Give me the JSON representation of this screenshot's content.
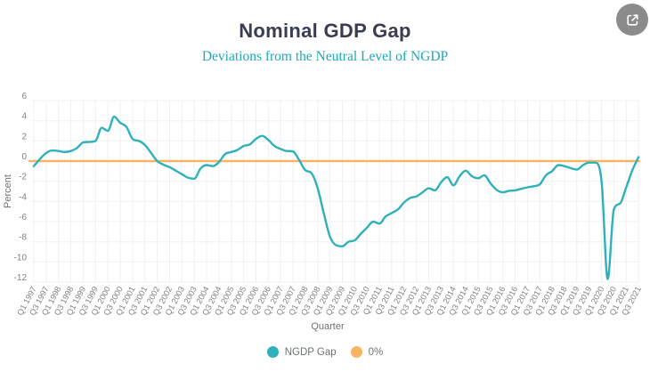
{
  "header": {
    "title": "Nominal GDP Gap",
    "subtitle": "Deviations from the Neutral Level of NGDP"
  },
  "toolbar": {
    "share_icon": "share-export-icon"
  },
  "legend": {
    "items": [
      {
        "label": "NGDP Gap",
        "color": "#2fb1bc"
      },
      {
        "label": "0%",
        "color": "#f8b464"
      }
    ]
  },
  "colors": {
    "title": "#383d52",
    "subtitle": "#1fa8b7",
    "ngdp_line": "#2fb1bc",
    "zero_line": "#f8b464",
    "axis_text": "#7e8184",
    "gridline": "#f0f0f4",
    "share_button": "#8b8b8b"
  },
  "chart_data": {
    "type": "line",
    "title": "Nominal GDP Gap",
    "subtitle": "Deviations from the Neutral Level of NGDP",
    "xlabel": "Quarter",
    "ylabel": "Percent",
    "ylim": [
      -12,
      6.4
    ],
    "yticks": [
      6,
      4,
      2,
      0,
      -2,
      -4,
      -6,
      -8,
      -10,
      -12
    ],
    "grid": true,
    "legend_position": "bottom",
    "x_tick_labels": [
      "Q1 1997",
      "Q3 1997",
      "Q1 1998",
      "Q3 1998",
      "Q1 1999",
      "Q3 1999",
      "Q1 2000",
      "Q3 2000",
      "Q1 2001",
      "Q3 2001",
      "Q1 2002",
      "Q3 2002",
      "Q1 2003",
      "Q3 2003",
      "Q1 2004",
      "Q3 2004",
      "Q1 2005",
      "Q3 2005",
      "Q1 2006",
      "Q3 2006",
      "Q1 2007",
      "Q3 2007",
      "Q1 2008",
      "Q3 2008",
      "Q1 2009",
      "Q3 2009",
      "Q1 2010",
      "Q3 2010",
      "Q1 2011",
      "Q3 2011",
      "Q1 2012",
      "Q3 2012",
      "Q1 2013",
      "Q3 2013",
      "Q1 2014",
      "Q3 2014",
      "Q1 2015",
      "Q3 2015",
      "Q1 2016",
      "Q3 2016",
      "Q1 2017",
      "Q3 2017",
      "Q1 2018",
      "Q3 2018",
      "Q1 2019",
      "Q3 2019",
      "Q1 2020",
      "Q3 2020",
      "Q1 2021",
      "Q3 2021"
    ],
    "x": [
      "Q1 1997",
      "Q2 1997",
      "Q3 1997",
      "Q4 1997",
      "Q1 1998",
      "Q2 1998",
      "Q3 1998",
      "Q4 1998",
      "Q1 1999",
      "Q2 1999",
      "Q3 1999",
      "Q4 1999",
      "Q1 2000",
      "Q2 2000",
      "Q3 2000",
      "Q4 2000",
      "Q1 2001",
      "Q2 2001",
      "Q3 2001",
      "Q4 2001",
      "Q1 2002",
      "Q2 2002",
      "Q3 2002",
      "Q4 2002",
      "Q1 2003",
      "Q2 2003",
      "Q3 2003",
      "Q4 2003",
      "Q1 2004",
      "Q2 2004",
      "Q3 2004",
      "Q4 2004",
      "Q1 2005",
      "Q2 2005",
      "Q3 2005",
      "Q4 2005",
      "Q1 2006",
      "Q2 2006",
      "Q3 2006",
      "Q4 2006",
      "Q1 2007",
      "Q2 2007",
      "Q3 2007",
      "Q4 2007",
      "Q1 2008",
      "Q2 2008",
      "Q3 2008",
      "Q4 2008",
      "Q1 2009",
      "Q2 2009",
      "Q3 2009",
      "Q4 2009",
      "Q1 2010",
      "Q2 2010",
      "Q3 2010",
      "Q4 2010",
      "Q1 2011",
      "Q2 2011",
      "Q3 2011",
      "Q4 2011",
      "Q1 2012",
      "Q2 2012",
      "Q3 2012",
      "Q4 2012",
      "Q1 2013",
      "Q2 2013",
      "Q3 2013",
      "Q4 2013",
      "Q1 2014",
      "Q2 2014",
      "Q3 2014",
      "Q4 2014",
      "Q1 2015",
      "Q2 2015",
      "Q3 2015",
      "Q4 2015",
      "Q1 2016",
      "Q2 2016",
      "Q3 2016",
      "Q4 2016",
      "Q1 2017",
      "Q2 2017",
      "Q3 2017",
      "Q4 2017",
      "Q1 2018",
      "Q2 2018",
      "Q3 2018",
      "Q4 2018",
      "Q1 2019",
      "Q2 2019",
      "Q3 2019",
      "Q4 2019",
      "Q1 2020",
      "Q2 2020",
      "Q3 2020",
      "Q4 2020",
      "Q1 2021",
      "Q2 2021",
      "Q3 2021"
    ],
    "series": [
      {
        "name": "NGDP Gap",
        "color": "#2fb1bc",
        "values": [
          -0.5,
          0.2,
          0.8,
          1.05,
          1.0,
          0.9,
          1.0,
          1.3,
          1.85,
          1.9,
          2.0,
          3.3,
          3.0,
          4.4,
          3.8,
          3.4,
          2.2,
          2.0,
          1.6,
          0.8,
          0.0,
          -0.35,
          -0.6,
          -0.95,
          -1.3,
          -1.65,
          -1.75,
          -0.75,
          -0.4,
          -0.5,
          -0.1,
          0.7,
          0.9,
          1.1,
          1.5,
          1.65,
          2.2,
          2.5,
          2.1,
          1.5,
          1.2,
          1.0,
          0.95,
          0.1,
          -0.9,
          -1.2,
          -2.7,
          -5.2,
          -7.5,
          -8.35,
          -8.45,
          -8.0,
          -7.85,
          -7.2,
          -6.6,
          -6.0,
          -6.2,
          -5.5,
          -5.15,
          -4.8,
          -4.1,
          -3.65,
          -3.5,
          -3.1,
          -2.7,
          -2.9,
          -2.1,
          -1.6,
          -2.4,
          -1.5,
          -0.95,
          -1.5,
          -1.7,
          -1.4,
          -2.2,
          -2.85,
          -3.1,
          -2.95,
          -2.9,
          -2.75,
          -2.6,
          -2.5,
          -2.3,
          -1.4,
          -1.0,
          -0.4,
          -0.5,
          -0.7,
          -0.85,
          -0.4,
          -0.15,
          -0.15,
          -2.0,
          -11.7,
          -4.8,
          -4.2,
          -2.6,
          -0.9,
          0.4
        ]
      },
      {
        "name": "0%",
        "color": "#f8b464",
        "type": "reference",
        "value": 0
      }
    ]
  }
}
